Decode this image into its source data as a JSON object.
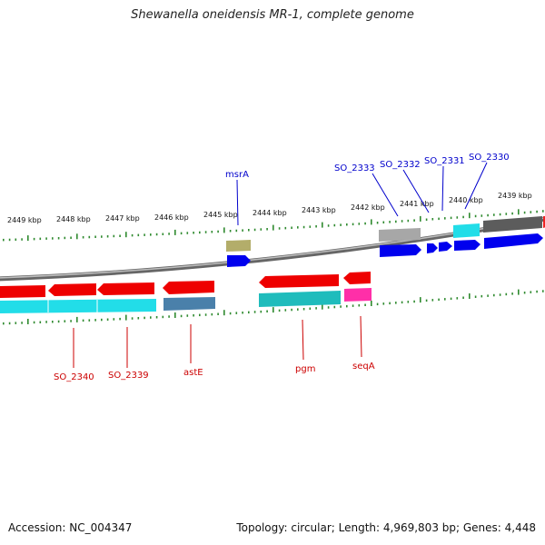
{
  "title": "Shewanella oneidensis MR-1, complete genome",
  "accession": "Accession: NC_004347",
  "summary": "Topology: circular; Length: 4,969,803 bp; Genes: 4,448",
  "colors": {
    "backbone": "#7a7a7a",
    "tick": "#2f8a2f",
    "label_forward": "#0000cc",
    "label_reverse": "#cc0000"
  },
  "scale_ticks": [
    "2449 kbp",
    "2448 kbp",
    "2447 kbp",
    "2446 kbp",
    "2445 kbp",
    "2444 kbp",
    "2443 kbp",
    "2442 kbp",
    "2441 kbp",
    "2440 kbp",
    "2439 kbp"
  ],
  "gene_labels": {
    "forward": [
      "msrA",
      "SO_2333",
      "SO_2332",
      "SO_2331",
      "SO_2330"
    ],
    "reverse": [
      "SO_2340",
      "SO_2339",
      "astE",
      "pgm",
      "seqA"
    ]
  }
}
